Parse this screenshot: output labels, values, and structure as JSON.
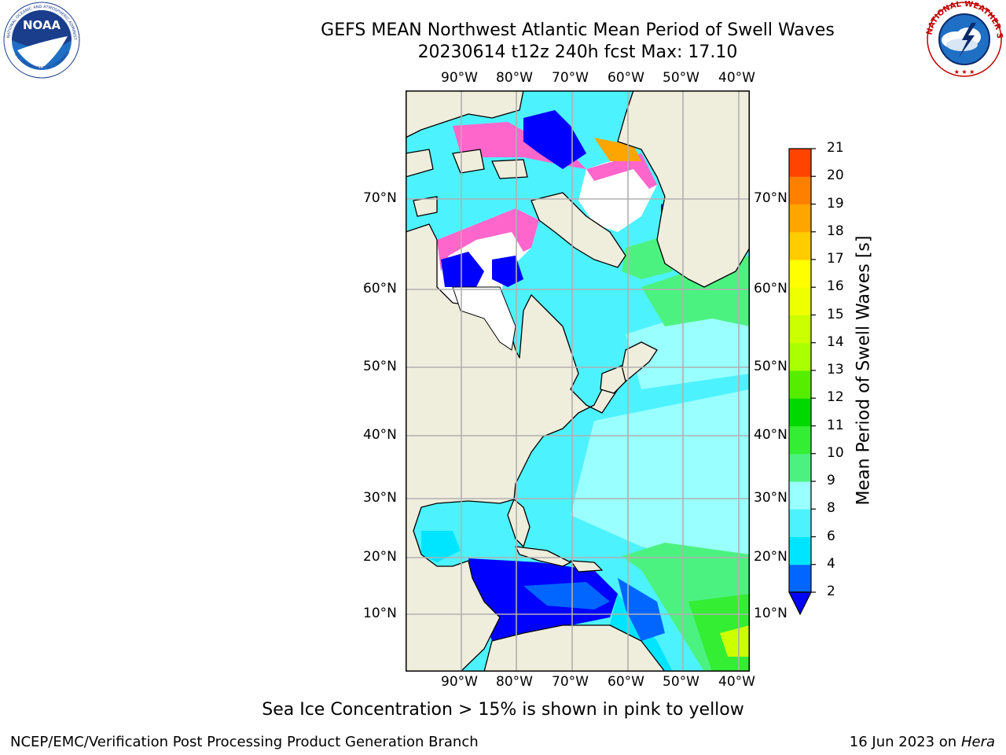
{
  "header": {
    "title_line1": "GEFS MEAN Northwest Atlantic Mean Period of Swell Waves",
    "title_line2": "20230614 t12z 240h fcst   Max: 17.10"
  },
  "logos": {
    "left": {
      "icon": "noaa-logo-icon",
      "text": "NOAA",
      "ring_text": "NATIONAL OCEANIC AND ATMOSPHERIC ADMINISTRATION · U.S. DEPARTMENT OF COMMERCE"
    },
    "right": {
      "icon": "nws-logo-icon",
      "ring_text": "NATIONAL WEATHER SERVICE"
    }
  },
  "map": {
    "lon_labels": [
      "90°W",
      "80°W",
      "70°W",
      "60°W",
      "50°W",
      "40°W"
    ],
    "lat_labels": [
      "70°N",
      "60°N",
      "50°N",
      "40°N",
      "30°N",
      "20°N",
      "10°N"
    ],
    "colors": {
      "land": "#efeddc",
      "ice": "#ffffff",
      "grid": "#b0b0b0"
    }
  },
  "colorbar": {
    "label": "Mean Period of Swell Waves [s]",
    "ticks": [
      "2",
      "4",
      "6",
      "8",
      "9",
      "10",
      "11",
      "12",
      "13",
      "14",
      "15",
      "16",
      "17",
      "18",
      "19",
      "20",
      "21"
    ],
    "colors": [
      "#0066ff",
      "#00e5ff",
      "#4df2ff",
      "#99ffff",
      "#4cf280",
      "#33ee33",
      "#00d900",
      "#55ee00",
      "#aaff00",
      "#ccff00",
      "#eeff00",
      "#ffff00",
      "#ffcc00",
      "#ffa500",
      "#ff8000",
      "#ff4400",
      "#ff1a00",
      "#ff0000"
    ],
    "underflow_color": "#0000ff"
  },
  "footer": {
    "ice_note": "Sea Ice Concentration > 15% is shown in pink to yellow",
    "left": "NCEP/EMC/Verification Post Processing Product Generation Branch",
    "right_date": "16 Jun 2023 on",
    "right_host": "Hera"
  }
}
